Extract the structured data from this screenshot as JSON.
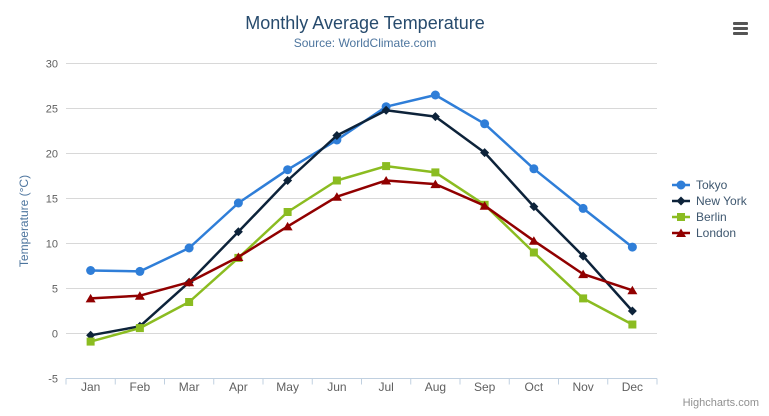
{
  "chart": {
    "credits": "Highcharts.com",
    "context_menu_icon": "hamburger-icon",
    "background_color": "#ffffff",
    "gridline_color": "#d8d8d8",
    "axis_line_color": "#c0d0e0",
    "tick_label_color": "#606060",
    "title_color": "#274b6d",
    "subtitle_color": "#4d759e",
    "legend_text_color": "#3E576F"
  },
  "chart_data": {
    "type": "line",
    "title": "Monthly Average Temperature",
    "subtitle": "Source: WorldClimate.com",
    "xlabel": "",
    "ylabel": "Temperature (°C)",
    "ylim": [
      -5,
      30
    ],
    "ytick_step": 5,
    "grid": "horizontal-only",
    "legend_position": "right",
    "categories": [
      "Jan",
      "Feb",
      "Mar",
      "Apr",
      "May",
      "Jun",
      "Jul",
      "Aug",
      "Sep",
      "Oct",
      "Nov",
      "Dec"
    ],
    "series": [
      {
        "name": "Tokyo",
        "color": "#2f7ed8",
        "marker": "circle",
        "values": [
          7.0,
          6.9,
          9.5,
          14.5,
          18.2,
          21.5,
          25.2,
          26.5,
          23.3,
          18.3,
          13.9,
          9.6
        ]
      },
      {
        "name": "New York",
        "color": "#0d233a",
        "marker": "diamond",
        "values": [
          -0.2,
          0.8,
          5.7,
          11.3,
          17.0,
          22.0,
          24.8,
          24.1,
          20.1,
          14.1,
          8.6,
          2.5
        ]
      },
      {
        "name": "Berlin",
        "color": "#8bbc21",
        "marker": "square",
        "values": [
          -0.9,
          0.6,
          3.5,
          8.4,
          13.5,
          17.0,
          18.6,
          17.9,
          14.3,
          9.0,
          3.9,
          1.0
        ]
      },
      {
        "name": "London",
        "color": "#910000",
        "marker": "triangle",
        "values": [
          3.9,
          4.2,
          5.7,
          8.5,
          11.9,
          15.2,
          17.0,
          16.6,
          14.2,
          10.3,
          6.6,
          4.8
        ]
      }
    ]
  }
}
